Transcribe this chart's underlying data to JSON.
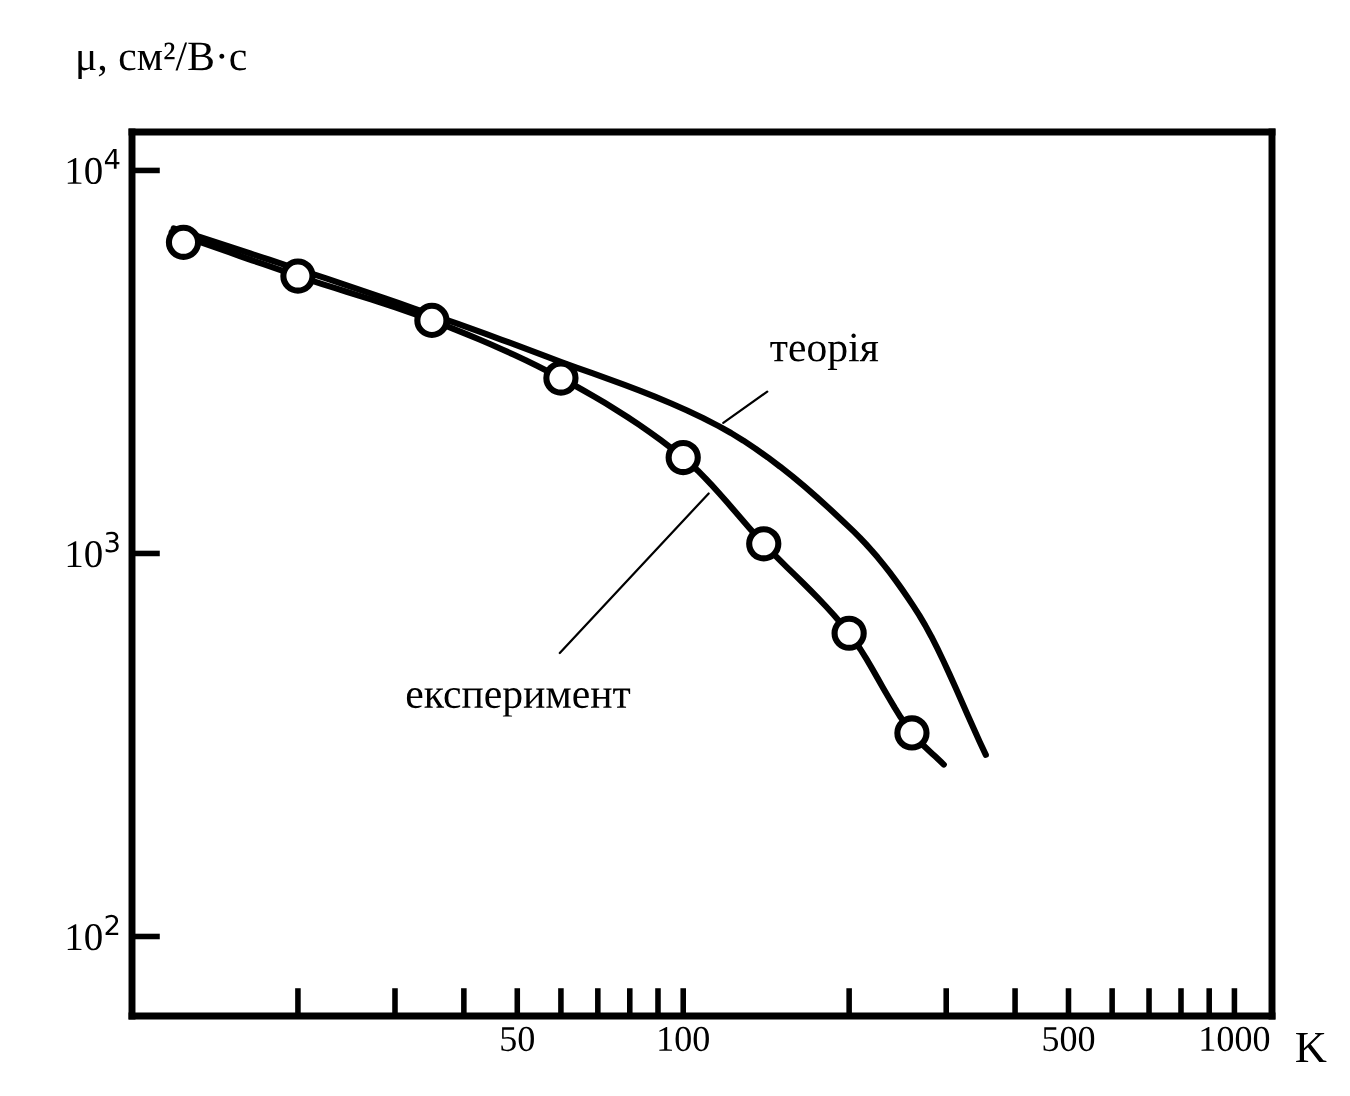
{
  "chart_data": {
    "type": "line",
    "xlabel": "K",
    "ylabel": "μ, см²/В·с",
    "log": "xy",
    "grid": false,
    "legend": false,
    "xlim": [
      10,
      1170
    ],
    "ylim": [
      62,
      12600
    ],
    "xticks": [
      {
        "value": 20,
        "label": null
      },
      {
        "value": 30,
        "label": null
      },
      {
        "value": 40,
        "label": null
      },
      50,
      {
        "value": 60,
        "label": null
      },
      {
        "value": 70,
        "label": null
      },
      {
        "value": 80,
        "label": null
      },
      {
        "value": 90,
        "label": null
      },
      100,
      {
        "value": 200,
        "label": null
      },
      {
        "value": 300,
        "label": null
      },
      {
        "value": 400,
        "label": null
      },
      500,
      {
        "value": 600,
        "label": null
      },
      {
        "value": 700,
        "label": null
      },
      {
        "value": 800,
        "label": null
      },
      {
        "value": 900,
        "label": null
      },
      1000
    ],
    "yticks": [
      {
        "value": 100,
        "label": "10$^{2}$"
      },
      {
        "value": 1000,
        "label": "10$^{3}$"
      },
      {
        "value": 10000,
        "label": "10$^{4}$"
      }
    ],
    "series": [
      {
        "color": "#000000",
        "x": [
          11.9,
          28.7,
          56.1,
          116,
          204,
          268,
          354
        ],
        "values": [
          7060,
          4640,
          3280,
          2150,
          1140,
          690,
          298
        ]
      },
      {
        "color": "#000000",
        "x": [
          11.8,
          20,
          35,
          60,
          100,
          140,
          200,
          260,
          297
        ],
        "values": [
          6900,
          5300,
          4060,
          2870,
          1780,
          1060,
          619,
          340,
          281
        ]
      },
      {
        "type": "scatter",
        "color": "#000000",
        "marker": "circle",
        "x": [
          12.4,
          20,
          35,
          60,
          100,
          140,
          200,
          260
        ],
        "values": [
          6490,
          5300,
          4060,
          2870,
          1780,
          1060,
          619,
          340
        ]
      }
    ],
    "annotations": [
      {
        "text": "теорія",
        "x": 116,
        "y": 2150
      },
      {
        "text": "експеримент",
        "x": 113,
        "y": 1470
      }
    ]
  }
}
